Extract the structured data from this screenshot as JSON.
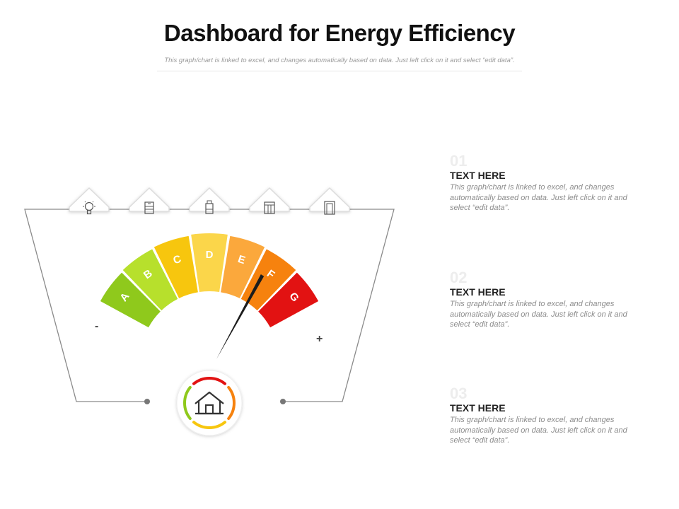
{
  "header": {
    "title": "Dashboard for Energy Efficiency",
    "subtitle": "This graph/chart is linked to excel, and changes automatically based on data. Just left click on it and select “edit data”."
  },
  "gauge": {
    "min_label": "-",
    "max_label": "+",
    "segments": [
      {
        "label": "A",
        "color": "#8fc91c"
      },
      {
        "label": "B",
        "color": "#b7e02c"
      },
      {
        "label": "C",
        "color": "#f7c60e"
      },
      {
        "label": "D",
        "color": "#fbd64a"
      },
      {
        "label": "E",
        "color": "#fba83c"
      },
      {
        "label": "F",
        "color": "#f6820e"
      },
      {
        "label": "G",
        "color": "#e21212"
      }
    ],
    "needle_value": 5.3,
    "icons": [
      "lightbulb-icon",
      "fridge-icon",
      "water-heater-icon",
      "washing-machine-icon",
      "door-icon"
    ],
    "center_icon": "house-icon",
    "ring_colors": [
      "#e21212",
      "#f6820e",
      "#f7c60e",
      "#8fc91c"
    ]
  },
  "sections": [
    {
      "number": "01",
      "heading": "TEXT HERE",
      "body": "This graph/chart is linked to excel, and changes automatically  based on data. Just left click on it and select “edit data”."
    },
    {
      "number": "02",
      "heading": "TEXT HERE",
      "body": "This graph/chart is linked to excel, and changes automatically based on data. Just left click on it and select “edit data”."
    },
    {
      "number": "03",
      "heading": "TEXT HERE",
      "body": "This graph/chart is linked to excel, and changes automatically based on data. Just left click on it and select “edit data”."
    }
  ]
}
